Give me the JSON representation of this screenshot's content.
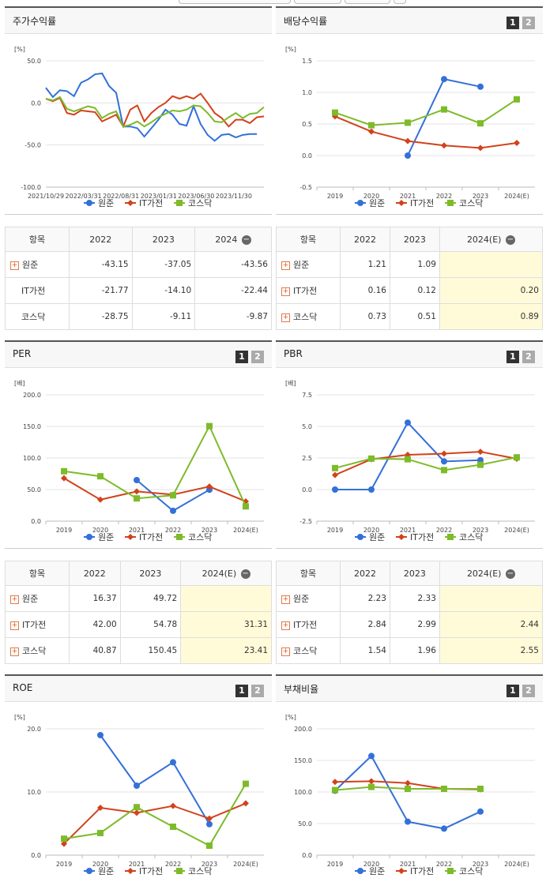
{
  "panels": {
    "p1": {
      "title": "주가수익률",
      "chart": {
        "unit": "[%]"
      },
      "table": {
        "header": "항목",
        "cols": [
          "2022",
          "2023",
          "2024"
        ],
        "rows": [
          {
            "name": "원준",
            "v": [
              "-43.15",
              "-37.05",
              "-43.56"
            ]
          },
          {
            "name": "IT가전",
            "v": [
              "-21.77",
              "-14.10",
              "-22.44"
            ]
          },
          {
            "name": "코스닥",
            "v": [
              "-28.75",
              "-9.11",
              "-9.87"
            ]
          }
        ]
      }
    },
    "p2": {
      "title": "배당수익률",
      "tabs": [
        "1",
        "2"
      ],
      "chart": {
        "unit": "[%]"
      },
      "table": {
        "header": "항목",
        "cols": [
          "2022",
          "2023",
          "2024(E)"
        ],
        "rows": [
          {
            "name": "원준",
            "v": [
              "1.21",
              "1.09",
              ""
            ]
          },
          {
            "name": "IT가전",
            "v": [
              "0.16",
              "0.12",
              "0.20"
            ]
          },
          {
            "name": "코스닥",
            "v": [
              "0.73",
              "0.51",
              "0.89"
            ]
          }
        ]
      }
    },
    "p3": {
      "title": "PER",
      "tabs": [
        "1",
        "2"
      ],
      "chart": {
        "unit": "[배]"
      },
      "table": {
        "header": "항목",
        "cols": [
          "2022",
          "2023",
          "2024(E)"
        ],
        "rows": [
          {
            "name": "원준",
            "v": [
              "16.37",
              "49.72",
              ""
            ]
          },
          {
            "name": "IT가전",
            "v": [
              "42.00",
              "54.78",
              "31.31"
            ]
          },
          {
            "name": "코스닥",
            "v": [
              "40.87",
              "150.45",
              "23.41"
            ]
          }
        ]
      }
    },
    "p4": {
      "title": "PBR",
      "tabs": [
        "1",
        "2"
      ],
      "chart": {
        "unit": "[배]"
      },
      "table": {
        "header": "항목",
        "cols": [
          "2022",
          "2023",
          "2024(E)"
        ],
        "rows": [
          {
            "name": "원준",
            "v": [
              "2.23",
              "2.33",
              ""
            ]
          },
          {
            "name": "IT가전",
            "v": [
              "2.84",
              "2.99",
              "2.44"
            ]
          },
          {
            "name": "코스닥",
            "v": [
              "1.54",
              "1.96",
              "2.55"
            ]
          }
        ]
      }
    },
    "p5": {
      "title": "ROE",
      "tabs": [
        "1",
        "2"
      ],
      "chart": {
        "unit": "[%]"
      }
    },
    "p6": {
      "title": "부채비율",
      "tabs": [
        "1",
        "2"
      ],
      "chart": {
        "unit": "[%]"
      }
    }
  },
  "colors": {
    "원준": "#3370d8",
    "IT가전": "#d2421b",
    "코스닥": "#7dbb2a"
  },
  "chart_data": [
    {
      "id": "p1",
      "type": "line",
      "title": "주가수익률",
      "ylabel": "[%]",
      "ylim": [
        -100,
        50
      ],
      "yticks": [
        "50.0",
        "0.0",
        "-50.0",
        "-100.0"
      ],
      "xticks": [
        "2021/10/29",
        "2022/03/31",
        "2022/08/31",
        "2023/01/31",
        "2023/06/30",
        "2023/11/30"
      ],
      "xcount": 37,
      "series": [
        {
          "name": "원준",
          "values": [
            18,
            7,
            15,
            14,
            8,
            24,
            28,
            34,
            35,
            20,
            12,
            -28,
            -28,
            -30,
            -40,
            -30,
            -20,
            -8,
            -14,
            -25,
            -27,
            -4,
            -25,
            -38,
            -45,
            -38,
            -37,
            -41,
            -38,
            -37,
            -37
          ]
        },
        {
          "name": "IT가전",
          "values": [
            5,
            2,
            6,
            -12,
            -14,
            -9,
            -10,
            -11,
            -22,
            -18,
            -14,
            -28,
            -8,
            -3,
            -22,
            -12,
            -5,
            0,
            8,
            5,
            8,
            5,
            11,
            0,
            -12,
            -18,
            -28,
            -20,
            -20,
            -24,
            -17,
            -16
          ]
        },
        {
          "name": "코스닥",
          "values": [
            5,
            3,
            7,
            -7,
            -10,
            -7,
            -4,
            -6,
            -18,
            -13,
            -10,
            -28,
            -26,
            -22,
            -28,
            -23,
            -17,
            -13,
            -9,
            -10,
            -8,
            -3,
            -4,
            -12,
            -22,
            -23,
            -17,
            -12,
            -18,
            -13,
            -12,
            -5
          ]
        }
      ],
      "legend": [
        "원준",
        "IT가전",
        "코스닥"
      ]
    },
    {
      "id": "p2",
      "type": "line",
      "title": "배당수익률",
      "ylabel": "[%]",
      "ylim": [
        -0.5,
        1.5
      ],
      "yticks": [
        "1.5",
        "1.0",
        "0.5",
        "0.0",
        "-0.5"
      ],
      "categories": [
        "2019",
        "2020",
        "2021",
        "2022",
        "2023",
        "2024(E)"
      ],
      "series": [
        {
          "name": "원준",
          "values": [
            null,
            null,
            0.0,
            1.21,
            1.09,
            null
          ]
        },
        {
          "name": "IT가전",
          "values": [
            0.62,
            0.38,
            0.23,
            0.16,
            0.12,
            0.2
          ]
        },
        {
          "name": "코스닥",
          "values": [
            0.68,
            0.48,
            0.52,
            0.73,
            0.51,
            0.89
          ]
        }
      ],
      "legend": [
        "원준",
        "IT가전",
        "코스닥"
      ]
    },
    {
      "id": "p3",
      "type": "line",
      "title": "PER",
      "ylabel": "[배]",
      "ylim": [
        0,
        200
      ],
      "yticks": [
        "200.0",
        "150.0",
        "100.0",
        "50.0",
        "0.0"
      ],
      "categories": [
        "2019",
        "2020",
        "2021",
        "2022",
        "2023",
        "2024(E)"
      ],
      "series": [
        {
          "name": "원준",
          "values": [
            null,
            null,
            65,
            16.37,
            49.72,
            null
          ]
        },
        {
          "name": "IT가전",
          "values": [
            68,
            34,
            47,
            42.0,
            54.78,
            31.31
          ]
        },
        {
          "name": "코스닥",
          "values": [
            79,
            71,
            36,
            40.87,
            150.45,
            23.41
          ]
        }
      ],
      "legend": [
        "원준",
        "IT가전",
        "코스닥"
      ]
    },
    {
      "id": "p4",
      "type": "line",
      "title": "PBR",
      "ylabel": "[배]",
      "ylim": [
        -2.5,
        7.5
      ],
      "yticks": [
        "7.5",
        "5.0",
        "2.5",
        "0.0",
        "-2.5"
      ],
      "categories": [
        "2019",
        "2020",
        "2021",
        "2022",
        "2023",
        "2024(E)"
      ],
      "series": [
        {
          "name": "원준",
          "values": [
            0.0,
            0.0,
            5.3,
            2.23,
            2.33,
            null
          ]
        },
        {
          "name": "IT가전",
          "values": [
            1.15,
            2.4,
            2.75,
            2.84,
            2.99,
            2.44
          ]
        },
        {
          "name": "코스닥",
          "values": [
            1.7,
            2.45,
            2.4,
            1.54,
            1.96,
            2.55
          ]
        }
      ],
      "legend": [
        "원준",
        "IT가전",
        "코스닥"
      ]
    },
    {
      "id": "p5",
      "type": "line",
      "title": "ROE",
      "ylabel": "[%]",
      "ylim": [
        0,
        20
      ],
      "yticks": [
        "20.0",
        "10.0",
        "0.0"
      ],
      "categories": [
        "2019",
        "2020",
        "2021",
        "2022",
        "2023",
        "2024(E)"
      ],
      "series": [
        {
          "name": "원준",
          "values": [
            null,
            19.0,
            11.0,
            14.7,
            4.9,
            null
          ]
        },
        {
          "name": "IT가전",
          "values": [
            1.8,
            7.5,
            6.7,
            7.8,
            5.8,
            8.2
          ]
        },
        {
          "name": "코스닥",
          "values": [
            2.6,
            3.5,
            7.6,
            4.5,
            1.5,
            11.3
          ]
        }
      ],
      "legend": [
        "원준",
        "IT가전",
        "코스닥"
      ]
    },
    {
      "id": "p6",
      "type": "line",
      "title": "부채비율",
      "ylabel": "[%]",
      "ylim": [
        0,
        200
      ],
      "yticks": [
        "200.0",
        "150.0",
        "100.0",
        "50.0",
        "0.0"
      ],
      "categories": [
        "2019",
        "2020",
        "2021",
        "2022",
        "2023",
        "2024(E)"
      ],
      "series": [
        {
          "name": "원준",
          "values": [
            102,
            157,
            53,
            42,
            69,
            null
          ]
        },
        {
          "name": "IT가전",
          "values": [
            116,
            117,
            114,
            105,
            104,
            null
          ]
        },
        {
          "name": "코스닥",
          "values": [
            103,
            108,
            105,
            105,
            105,
            null
          ]
        }
      ],
      "legend": [
        "원준",
        "IT가전",
        "코스닥"
      ]
    }
  ]
}
